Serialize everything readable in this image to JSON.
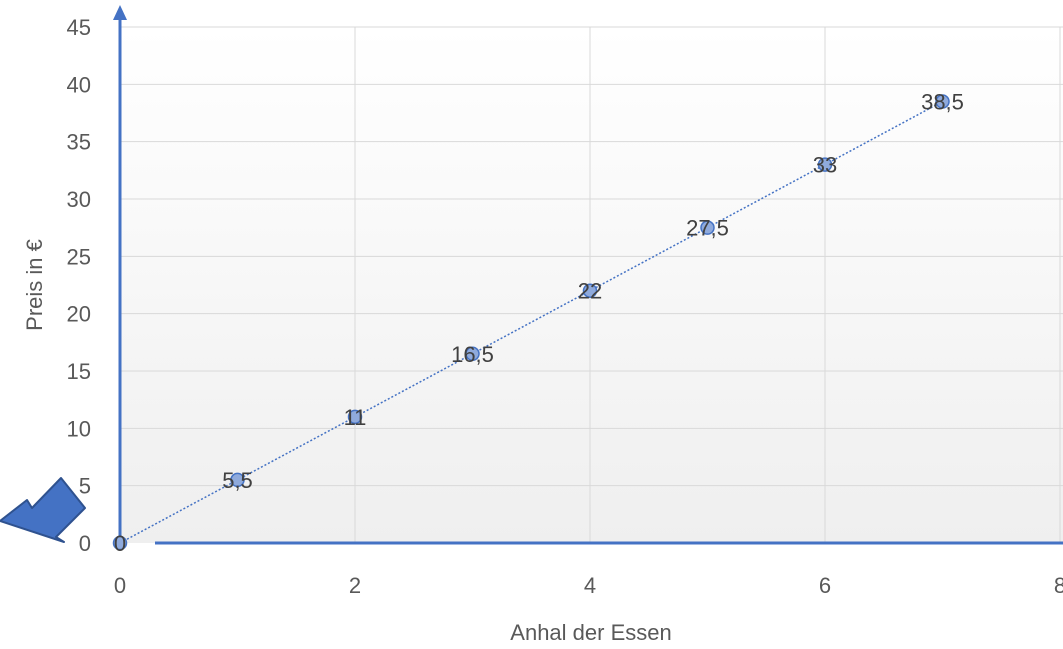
{
  "chart_data": {
    "type": "scatter",
    "title": "",
    "xlabel": "Anhal der Essen",
    "ylabel": "Preis in €",
    "xlim": [
      0,
      8
    ],
    "ylim": [
      0,
      45
    ],
    "x_ticks": [
      0,
      2,
      4,
      6,
      8
    ],
    "y_ticks": [
      0,
      5,
      10,
      15,
      20,
      25,
      30,
      35,
      40,
      45
    ],
    "grid": true,
    "legend": "none",
    "trendline": "linear, dotted",
    "series": [
      {
        "points": [
          {
            "x": 0,
            "y": 0,
            "label": "0"
          },
          {
            "x": 1,
            "y": 5.5,
            "label": "5,5"
          },
          {
            "x": 2,
            "y": 11,
            "label": "11"
          },
          {
            "x": 3,
            "y": 16.5,
            "label": "16,5"
          },
          {
            "x": 4,
            "y": 22,
            "label": "22"
          },
          {
            "x": 5,
            "y": 27.5,
            "label": "27,5"
          },
          {
            "x": 6,
            "y": 33,
            "label": "33"
          },
          {
            "x": 7,
            "y": 38.5,
            "label": "38,5"
          }
        ]
      }
    ],
    "annotations": [
      "blue arrow pointing to origin"
    ],
    "colors": {
      "axis": "#4472C4",
      "marker_fill": "#8FAADC",
      "marker_stroke": "#4472C4",
      "trendline": "#4472C4",
      "arrow_fill": "#4472C4",
      "arrow_stroke": "#2F528F",
      "grid": "#D9D9D9"
    }
  }
}
